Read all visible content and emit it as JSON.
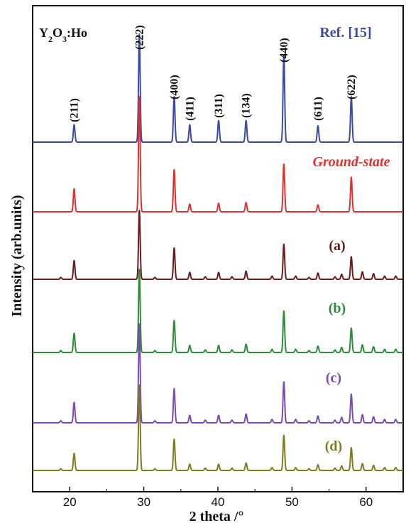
{
  "chart_data": {
    "type": "line",
    "title": "",
    "xlabel": "2 theta /°",
    "ylabel": "Intensity (arb.units)",
    "xlim": [
      15,
      65
    ],
    "xticks": [
      20,
      30,
      40,
      50,
      60
    ],
    "y_ticks_shown": false,
    "grid": false,
    "annotation_formula": {
      "base": "Y",
      "sub1": "2",
      "mid": "O",
      "sub2": "3",
      "tail": ":Ho"
    },
    "peak_labels": [
      {
        "hkl": "(211)",
        "x": 20.6
      },
      {
        "hkl": "(222)",
        "x": 29.4
      },
      {
        "hkl": "(400)",
        "x": 34.1
      },
      {
        "hkl": "(411)",
        "x": 36.2
      },
      {
        "hkl": "(311)",
        "x": 40.1
      },
      {
        "hkl": "(134)",
        "x": 43.8
      },
      {
        "hkl": "(440)",
        "x": 48.9
      },
      {
        "hkl": "(611)",
        "x": 53.5
      },
      {
        "hkl": "(622)",
        "x": 58.0
      }
    ],
    "series": [
      {
        "name": "Ref. [15]",
        "color": "#3b4aa5",
        "peaks": [
          [
            20.6,
            0.16
          ],
          [
            29.4,
            1.0
          ],
          [
            34.1,
            0.42
          ],
          [
            36.2,
            0.16
          ],
          [
            40.1,
            0.2
          ],
          [
            43.8,
            0.2
          ],
          [
            48.9,
            0.8
          ],
          [
            53.5,
            0.15
          ],
          [
            58.0,
            0.42
          ]
        ]
      },
      {
        "name": "Ground-state",
        "color": "#e03030",
        "peaks": [
          [
            20.6,
            0.3
          ],
          [
            29.4,
            1.5
          ],
          [
            34.1,
            0.55
          ],
          [
            36.2,
            0.1
          ],
          [
            40.1,
            0.11
          ],
          [
            43.8,
            0.12
          ],
          [
            48.9,
            0.62
          ],
          [
            53.5,
            0.09
          ],
          [
            58.0,
            0.45
          ]
        ]
      },
      {
        "name": "(a)",
        "color": "#6b1a1a",
        "peaks": [
          [
            18.8,
            0.03
          ],
          [
            20.6,
            0.3
          ],
          [
            29.4,
            1.1
          ],
          [
            31.5,
            0.03
          ],
          [
            34.1,
            0.5
          ],
          [
            36.2,
            0.11
          ],
          [
            38.3,
            0.04
          ],
          [
            40.1,
            0.11
          ],
          [
            41.9,
            0.04
          ],
          [
            43.8,
            0.13
          ],
          [
            47.3,
            0.05
          ],
          [
            48.9,
            0.56
          ],
          [
            50.5,
            0.05
          ],
          [
            52.3,
            0.03
          ],
          [
            53.5,
            0.1
          ],
          [
            55.8,
            0.04
          ],
          [
            56.7,
            0.08
          ],
          [
            58.0,
            0.36
          ],
          [
            59.5,
            0.12
          ],
          [
            61.0,
            0.09
          ],
          [
            62.5,
            0.05
          ],
          [
            64.0,
            0.05
          ]
        ]
      },
      {
        "name": "(b)",
        "color": "#2e8b3a",
        "peaks": [
          [
            18.8,
            0.03
          ],
          [
            20.6,
            0.3
          ],
          [
            29.4,
            1.3
          ],
          [
            31.5,
            0.03
          ],
          [
            34.1,
            0.5
          ],
          [
            36.2,
            0.11
          ],
          [
            38.3,
            0.04
          ],
          [
            40.1,
            0.11
          ],
          [
            41.9,
            0.04
          ],
          [
            43.8,
            0.13
          ],
          [
            47.3,
            0.05
          ],
          [
            48.9,
            0.65
          ],
          [
            50.5,
            0.05
          ],
          [
            52.3,
            0.03
          ],
          [
            53.5,
            0.1
          ],
          [
            55.8,
            0.04
          ],
          [
            56.7,
            0.08
          ],
          [
            58.0,
            0.38
          ],
          [
            59.5,
            0.12
          ],
          [
            61.0,
            0.09
          ],
          [
            62.5,
            0.05
          ],
          [
            64.0,
            0.05
          ]
        ]
      },
      {
        "name": "(c)",
        "color": "#7a4bb0",
        "peaks": [
          [
            18.8,
            0.03
          ],
          [
            20.6,
            0.3
          ],
          [
            29.4,
            1.45
          ],
          [
            31.5,
            0.03
          ],
          [
            34.1,
            0.5
          ],
          [
            36.2,
            0.11
          ],
          [
            38.3,
            0.04
          ],
          [
            40.1,
            0.11
          ],
          [
            41.9,
            0.04
          ],
          [
            43.8,
            0.13
          ],
          [
            47.3,
            0.05
          ],
          [
            48.9,
            0.6
          ],
          [
            50.5,
            0.05
          ],
          [
            52.3,
            0.03
          ],
          [
            53.5,
            0.1
          ],
          [
            55.8,
            0.04
          ],
          [
            56.7,
            0.08
          ],
          [
            58.0,
            0.42
          ],
          [
            59.5,
            0.12
          ],
          [
            61.0,
            0.09
          ],
          [
            62.5,
            0.05
          ],
          [
            64.0,
            0.05
          ]
        ]
      },
      {
        "name": "(d)",
        "color": "#7d7d20",
        "peaks": [
          [
            18.8,
            0.03
          ],
          [
            20.6,
            0.3
          ],
          [
            29.4,
            1.5
          ],
          [
            31.5,
            0.03
          ],
          [
            34.1,
            0.55
          ],
          [
            36.2,
            0.11
          ],
          [
            38.3,
            0.04
          ],
          [
            40.1,
            0.11
          ],
          [
            41.9,
            0.04
          ],
          [
            43.8,
            0.13
          ],
          [
            47.3,
            0.05
          ],
          [
            48.9,
            0.62
          ],
          [
            50.5,
            0.05
          ],
          [
            52.3,
            0.03
          ],
          [
            53.5,
            0.1
          ],
          [
            55.8,
            0.04
          ],
          [
            56.7,
            0.08
          ],
          [
            58.0,
            0.4
          ],
          [
            59.5,
            0.12
          ],
          [
            61.0,
            0.09
          ],
          [
            62.5,
            0.05
          ],
          [
            64.0,
            0.05
          ]
        ]
      }
    ]
  }
}
